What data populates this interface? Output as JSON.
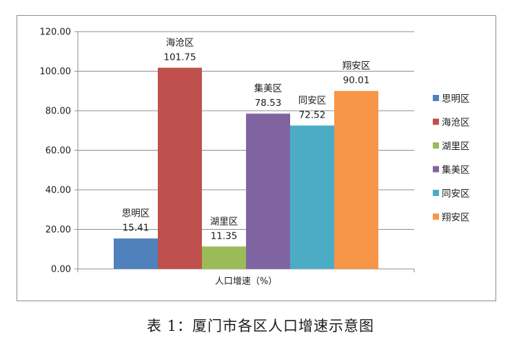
{
  "caption": "表 1：厦门市各区人口增速示意图",
  "chart_data": {
    "type": "bar",
    "categories": [
      "人口增速（%）"
    ],
    "xlabel": "人口增速（%）",
    "ylabel": "",
    "ylim": [
      0,
      120
    ],
    "yticks": [
      "0.00",
      "20.00",
      "40.00",
      "60.00",
      "80.00",
      "100.00",
      "120.00"
    ],
    "grid": true,
    "legend_position": "right",
    "series": [
      {
        "name": "思明区",
        "values": [
          15.41
        ],
        "label": "15.41",
        "color": "#4f81bd"
      },
      {
        "name": "海沧区",
        "values": [
          101.75
        ],
        "label": "101.75",
        "color": "#c0504d"
      },
      {
        "name": "湖里区",
        "values": [
          11.35
        ],
        "label": "11.35",
        "color": "#9bbb59"
      },
      {
        "name": "集美区",
        "values": [
          78.53
        ],
        "label": "78.53",
        "color": "#8064a2"
      },
      {
        "name": "同安区",
        "values": [
          72.52
        ],
        "label": "72.52",
        "color": "#4bacc6"
      },
      {
        "name": "翔安区",
        "values": [
          90.01
        ],
        "label": "90.01",
        "color": "#f79646"
      }
    ]
  }
}
